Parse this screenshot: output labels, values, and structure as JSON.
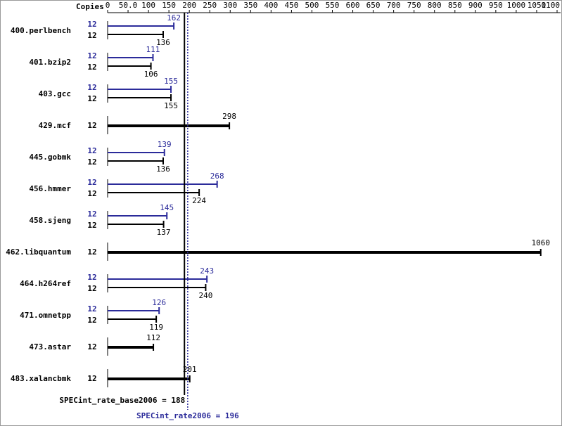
{
  "chart_data": {
    "type": "bar",
    "copies_label": "Copies",
    "categories": [
      "400.perlbench",
      "401.bzip2",
      "403.gcc",
      "429.mcf",
      "445.gobmk",
      "456.hmmer",
      "458.sjeng",
      "462.libquantum",
      "464.h264ref",
      "471.omnetpp",
      "473.astar",
      "483.xalancbmk"
    ],
    "series": [
      {
        "name": "SPECint_rate2006",
        "color": "#2b2b9a",
        "values": [
          162,
          111,
          155,
          null,
          139,
          268,
          145,
          null,
          243,
          126,
          null,
          null
        ],
        "copies": [
          12,
          12,
          12,
          null,
          12,
          12,
          12,
          null,
          12,
          12,
          null,
          null
        ]
      },
      {
        "name": "SPECint_rate_base2006",
        "color": "#000000",
        "values": [
          136,
          106,
          155,
          298,
          136,
          224,
          137,
          1060,
          240,
          119,
          112,
          201
        ],
        "copies": [
          12,
          12,
          12,
          12,
          12,
          12,
          12,
          12,
          12,
          12,
          12,
          12
        ]
      }
    ],
    "reference_lines": [
      {
        "label": "SPECint_rate_base2006 = 188",
        "value": 188,
        "color": "#000000"
      },
      {
        "label": "SPECint_rate2006 = 196",
        "value": 196,
        "color": "#2b2b9a"
      }
    ],
    "xlim": [
      0,
      1100
    ],
    "xticks": [
      0,
      {
        "value": 50,
        "label": "50.0"
      },
      100,
      150,
      200,
      250,
      300,
      350,
      400,
      450,
      500,
      550,
      600,
      650,
      700,
      750,
      800,
      850,
      900,
      950,
      1000,
      1050,
      1100
    ]
  }
}
